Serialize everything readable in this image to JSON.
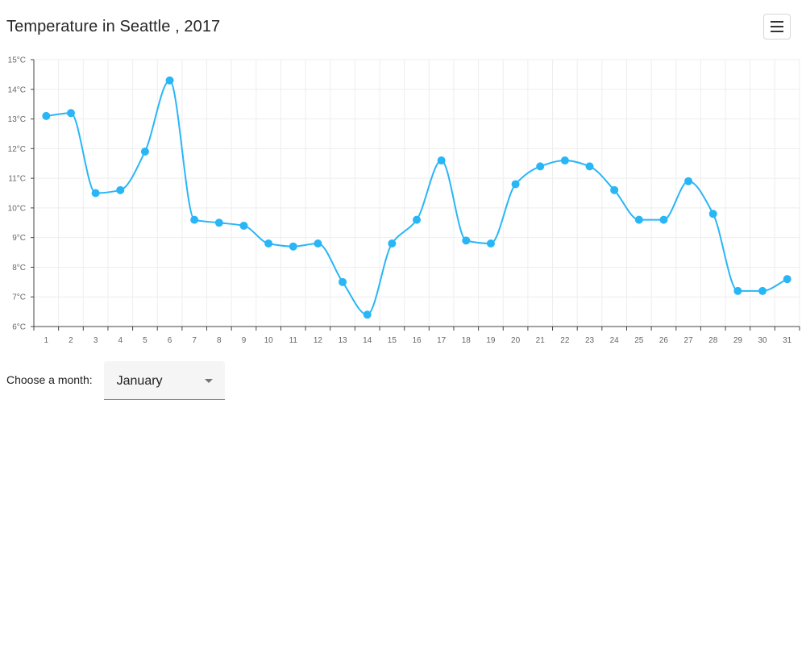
{
  "header": {
    "title": "Temperature in Seattle , 2017"
  },
  "menu_button": {
    "icon": "hamburger-menu-icon"
  },
  "controls": {
    "choose_label": "Choose a month:",
    "month_selected": "January"
  },
  "colors": {
    "series": "#29b6f6",
    "grid": "#eeeeee",
    "axis": "#444444"
  },
  "chart_data": {
    "type": "line",
    "title": "Temperature in Seattle , 2017",
    "xlabel": "",
    "ylabel": "",
    "x": [
      1,
      2,
      3,
      4,
      5,
      6,
      7,
      8,
      9,
      10,
      11,
      12,
      13,
      14,
      15,
      16,
      17,
      18,
      19,
      20,
      21,
      22,
      23,
      24,
      25,
      26,
      27,
      28,
      29,
      30,
      31
    ],
    "x_tick_labels": [
      "1",
      "2",
      "3",
      "4",
      "5",
      "6",
      "7",
      "8",
      "9",
      "10",
      "11",
      "12",
      "13",
      "14",
      "15",
      "16",
      "17",
      "18",
      "19",
      "20",
      "21",
      "22",
      "23",
      "24",
      "25",
      "26",
      "27",
      "28",
      "29",
      "30",
      "31"
    ],
    "y_tick_labels": [
      "6°C",
      "7°C",
      "8°C",
      "9°C",
      "10°C",
      "11°C",
      "12°C",
      "13°C",
      "14°C",
      "15°C"
    ],
    "y_ticks": [
      6,
      7,
      8,
      9,
      10,
      11,
      12,
      13,
      14,
      15
    ],
    "ylim": [
      6,
      15
    ],
    "grid": true,
    "curve": "smooth",
    "series": [
      {
        "values": [
          13.1,
          13.2,
          10.5,
          10.6,
          11.9,
          14.3,
          9.6,
          9.5,
          9.4,
          8.8,
          8.7,
          8.8,
          7.5,
          6.4,
          8.8,
          9.6,
          11.6,
          8.9,
          8.8,
          10.8,
          11.4,
          11.6,
          11.4,
          10.6,
          9.6,
          9.6,
          10.9,
          9.8,
          7.2,
          7.2,
          7.6
        ]
      }
    ]
  }
}
